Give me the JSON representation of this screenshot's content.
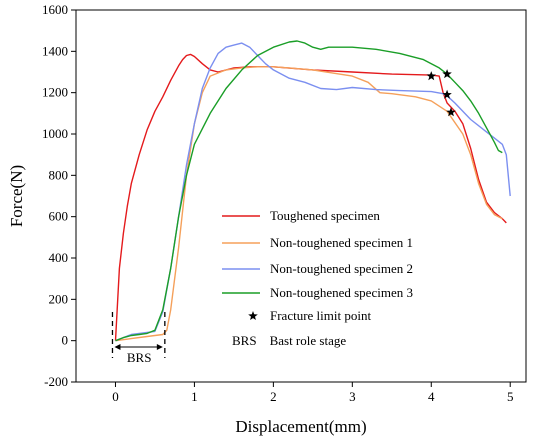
{
  "chart_data": {
    "type": "line",
    "title": "",
    "xlabel": "Displacement(mm)",
    "ylabel": "Force(N)",
    "xlim": [
      -0.5,
      5.2
    ],
    "ylim": [
      -200,
      1600
    ],
    "xticks": [
      0,
      1,
      2,
      3,
      4,
      5
    ],
    "yticks": [
      -200,
      0,
      200,
      400,
      600,
      800,
      1000,
      1200,
      1400,
      1600
    ],
    "grid": false,
    "legend_position": "center-right",
    "series": [
      {
        "name": "Toughened specimen",
        "color": "#e41a1c",
        "x": [
          0,
          0.05,
          0.1,
          0.15,
          0.2,
          0.3,
          0.4,
          0.5,
          0.6,
          0.7,
          0.8,
          0.85,
          0.9,
          0.95,
          1.0,
          1.1,
          1.2,
          1.3,
          1.5,
          1.7,
          2.0,
          2.5,
          3.0,
          3.5,
          4.0,
          4.1,
          4.15,
          4.2,
          4.3,
          4.4,
          4.5,
          4.6,
          4.7,
          4.8,
          4.9,
          4.95
        ],
        "y": [
          0,
          350,
          520,
          650,
          760,
          900,
          1020,
          1110,
          1180,
          1260,
          1330,
          1360,
          1380,
          1385,
          1375,
          1340,
          1310,
          1300,
          1320,
          1325,
          1325,
          1310,
          1300,
          1290,
          1285,
          1280,
          1200,
          1150,
          1110,
          1050,
          930,
          780,
          670,
          620,
          590,
          570
        ]
      },
      {
        "name": "Non-toughened specimen 1",
        "color": "#f5a05a",
        "x": [
          0,
          0.2,
          0.4,
          0.6,
          0.65,
          0.7,
          0.8,
          0.9,
          1.0,
          1.1,
          1.2,
          1.4,
          1.6,
          1.8,
          2.0,
          2.2,
          2.5,
          3.0,
          3.2,
          3.35,
          3.5,
          3.8,
          4.0,
          4.2,
          4.4,
          4.5,
          4.6,
          4.7,
          4.8,
          4.9
        ],
        "y": [
          0,
          10,
          20,
          30,
          50,
          150,
          450,
          800,
          1050,
          1200,
          1280,
          1310,
          1320,
          1325,
          1325,
          1320,
          1310,
          1280,
          1250,
          1200,
          1195,
          1180,
          1160,
          1110,
          1000,
          900,
          760,
          660,
          610,
          590
        ]
      },
      {
        "name": "Non-toughened specimen 2",
        "color": "#7b8ff0",
        "x": [
          0,
          0.1,
          0.2,
          0.3,
          0.4,
          0.5,
          0.6,
          0.7,
          0.8,
          0.9,
          1.0,
          1.1,
          1.2,
          1.3,
          1.4,
          1.5,
          1.6,
          1.7,
          1.8,
          1.9,
          2.0,
          2.2,
          2.4,
          2.6,
          2.8,
          3.0,
          3.3,
          3.6,
          4.0,
          4.15,
          4.2,
          4.3,
          4.5,
          4.7,
          4.8,
          4.9,
          4.95,
          5.0
        ],
        "y": [
          0,
          15,
          30,
          35,
          40,
          45,
          140,
          350,
          600,
          850,
          1050,
          1220,
          1320,
          1390,
          1420,
          1430,
          1440,
          1420,
          1380,
          1340,
          1310,
          1270,
          1250,
          1220,
          1215,
          1225,
          1215,
          1210,
          1205,
          1195,
          1185,
          1150,
          1070,
          1010,
          980,
          950,
          900,
          700
        ]
      },
      {
        "name": "Non-toughened specimen 3",
        "color": "#1a9e27",
        "x": [
          0,
          0.1,
          0.2,
          0.3,
          0.4,
          0.5,
          0.6,
          0.7,
          0.8,
          0.9,
          1.0,
          1.2,
          1.4,
          1.6,
          1.8,
          2.0,
          2.2,
          2.3,
          2.4,
          2.5,
          2.6,
          2.7,
          3.0,
          3.3,
          3.6,
          3.9,
          4.1,
          4.2,
          4.3,
          4.4,
          4.5,
          4.6,
          4.7,
          4.8,
          4.85,
          4.9
        ],
        "y": [
          0,
          15,
          25,
          30,
          35,
          50,
          150,
          350,
          600,
          800,
          950,
          1100,
          1220,
          1310,
          1380,
          1420,
          1445,
          1450,
          1440,
          1420,
          1410,
          1420,
          1420,
          1410,
          1390,
          1360,
          1320,
          1290,
          1250,
          1210,
          1160,
          1100,
          1030,
          960,
          920,
          910
        ]
      }
    ],
    "fracture_points": {
      "name": "Fracture limit point",
      "marker": "star",
      "points": [
        {
          "x": 4.0,
          "y": 1280
        },
        {
          "x": 4.2,
          "y": 1290
        },
        {
          "x": 4.2,
          "y": 1190
        },
        {
          "x": 4.25,
          "y": 1105
        }
      ]
    },
    "annotations": {
      "brs_label": "BRS",
      "brs_legend_text": "BRS    Bast role stage",
      "brs_range": [
        0,
        0.6
      ]
    }
  }
}
